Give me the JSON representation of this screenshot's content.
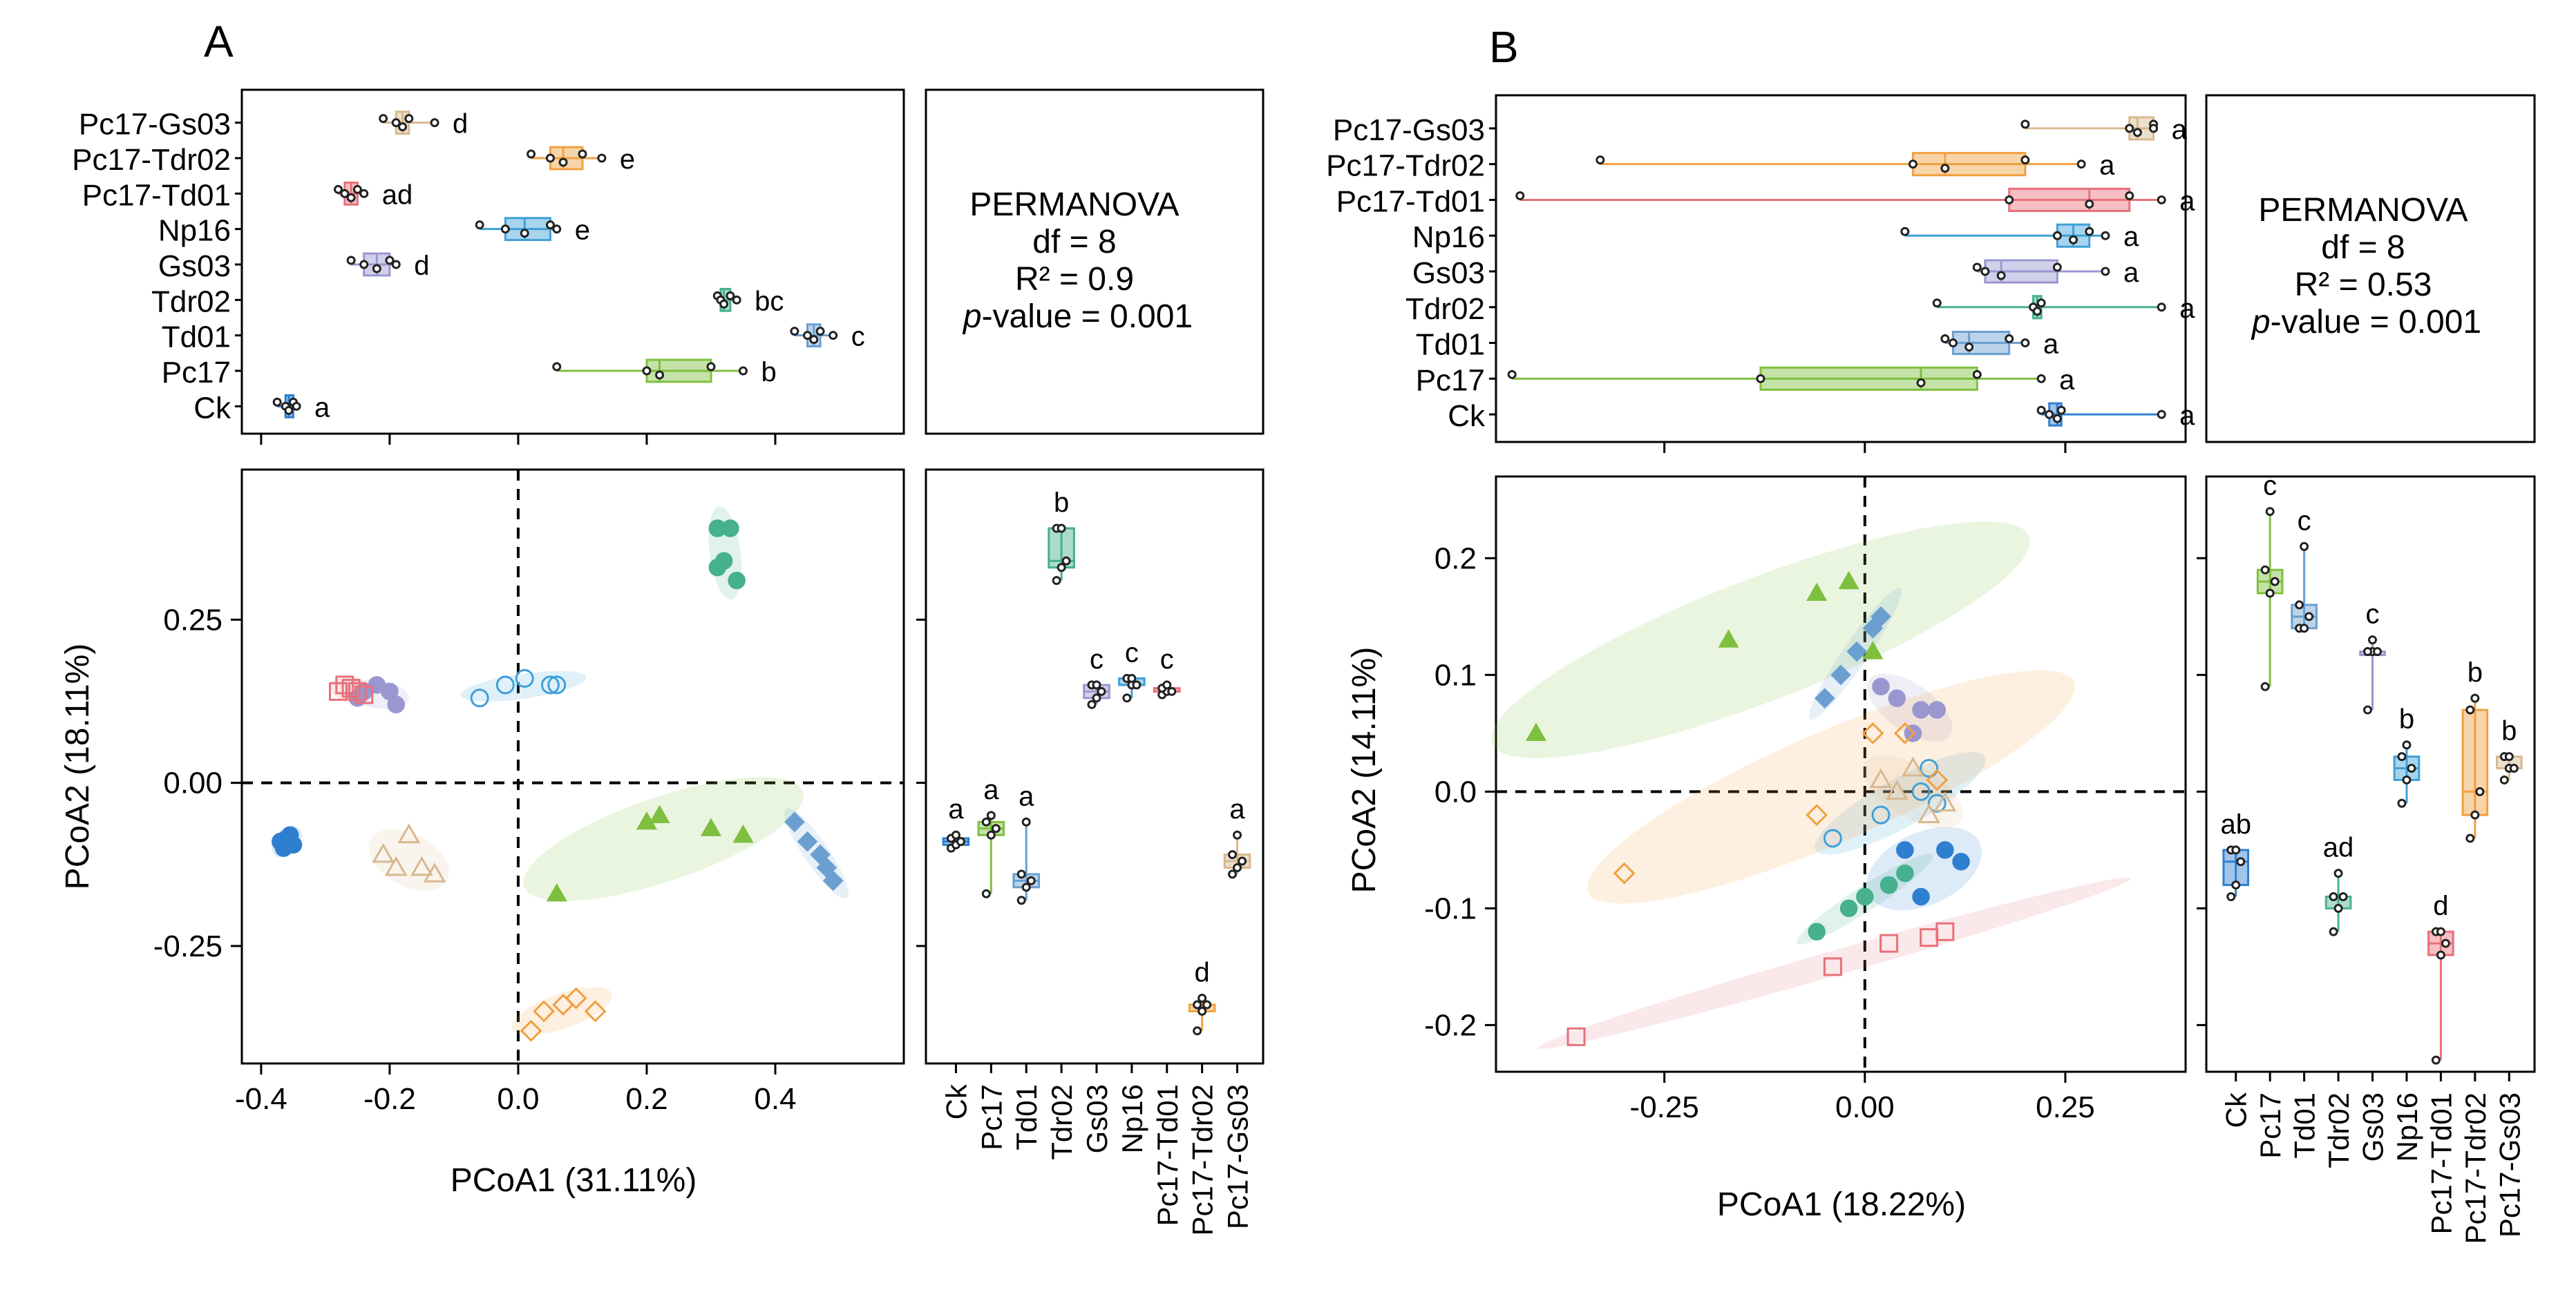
{
  "colors": {
    "Ck": "#2e7fd0",
    "Pc17": "#7fbf3f",
    "Td01": "#6a9fd0",
    "Tdr02": "#46b08f",
    "Gs03": "#9a96d0",
    "Np16": "#3fa0d8",
    "Pc17-Td01": "#e8707a",
    "Pc17-Tdr02": "#f0a040",
    "Pc17-Gs03": "#d8b890"
  },
  "chart_data": [
    {
      "panel": "A",
      "type": "scatter",
      "panel_label": "A",
      "xlabel": "PCoA1 (31.11%)",
      "ylabel": "PCoA2 (18.11%)",
      "xlim": [
        -0.43,
        0.6
      ],
      "ylim": [
        -0.43,
        0.48
      ],
      "x_ticks": [
        -0.4,
        -0.2,
        0.0,
        0.2,
        0.4
      ],
      "x_tick_labels": [
        "-0.4",
        "-0.2",
        "0.0",
        "0.2",
        "0.4"
      ],
      "y_ticks": [
        -0.25,
        0.0,
        0.25
      ],
      "y_tick_labels": [
        "-0.25",
        "0.00",
        "0.25"
      ],
      "side_ylim": [
        -0.43,
        0.48
      ],
      "groups": [
        "Ck",
        "Pc17",
        "Td01",
        "Tdr02",
        "Gs03",
        "Np16",
        "Pc17-Td01",
        "Pc17-Tdr02",
        "Pc17-Gs03"
      ],
      "top_groups_order": [
        "Pc17-Gs03",
        "Pc17-Tdr02",
        "Pc17-Td01",
        "Np16",
        "Gs03",
        "Tdr02",
        "Td01",
        "Pc17",
        "Ck"
      ],
      "series": [
        {
          "name": "Ck",
          "marker": "circle-filled",
          "points": [
            [
              -0.37,
              -0.09
            ],
            [
              -0.36,
              -0.085
            ],
            [
              -0.365,
              -0.1
            ],
            [
              -0.35,
              -0.095
            ],
            [
              -0.355,
              -0.08
            ]
          ],
          "box_x": [
            -0.375,
            -0.362,
            -0.357,
            -0.35,
            -0.345
          ],
          "box_y": [
            -0.1,
            -0.095,
            -0.09,
            -0.085,
            -0.08
          ],
          "letter_top": "a",
          "letter_side": "a"
        },
        {
          "name": "Pc17",
          "marker": "triangle-filled",
          "points": [
            [
              0.2,
              -0.06
            ],
            [
              0.22,
              -0.05
            ],
            [
              0.3,
              -0.07
            ],
            [
              0.35,
              -0.08
            ],
            [
              0.06,
              -0.17
            ]
          ],
          "box_x": [
            0.06,
            0.2,
            0.22,
            0.3,
            0.35
          ],
          "box_y": [
            -0.17,
            -0.08,
            -0.07,
            -0.06,
            -0.05
          ],
          "letter_top": "b",
          "letter_side": "a"
        },
        {
          "name": "Td01",
          "marker": "diamond-filled",
          "points": [
            [
              0.43,
              -0.06
            ],
            [
              0.45,
              -0.09
            ],
            [
              0.47,
              -0.11
            ],
            [
              0.48,
              -0.13
            ],
            [
              0.49,
              -0.15
            ]
          ],
          "box_x": [
            0.43,
            0.45,
            0.46,
            0.47,
            0.49
          ],
          "box_y": [
            -0.18,
            -0.16,
            -0.15,
            -0.14,
            -0.06
          ],
          "letter_top": "c",
          "letter_side": "a"
        },
        {
          "name": "Tdr02",
          "marker": "circle-filled",
          "points": [
            [
              0.31,
              0.39
            ],
            [
              0.33,
              0.39
            ],
            [
              0.32,
              0.34
            ],
            [
              0.34,
              0.31
            ],
            [
              0.31,
              0.33
            ]
          ],
          "box_x": [
            0.31,
            0.315,
            0.32,
            0.33,
            0.34
          ],
          "box_y": [
            0.31,
            0.33,
            0.34,
            0.39,
            0.39
          ],
          "letter_top": "bc",
          "letter_side": "b"
        },
        {
          "name": "Gs03",
          "marker": "circle-filled",
          "points": [
            [
              -0.24,
              0.14
            ],
            [
              -0.22,
              0.15
            ],
            [
              -0.2,
              0.14
            ],
            [
              -0.19,
              0.12
            ],
            [
              -0.25,
              0.13
            ]
          ],
          "box_x": [
            -0.26,
            -0.24,
            -0.22,
            -0.2,
            -0.19
          ],
          "box_y": [
            0.12,
            0.13,
            0.14,
            0.15,
            0.15
          ],
          "letter_top": "d",
          "letter_side": "c"
        },
        {
          "name": "Np16",
          "marker": "circle-open",
          "points": [
            [
              -0.06,
              0.13
            ],
            [
              -0.02,
              0.15
            ],
            [
              0.01,
              0.16
            ],
            [
              0.05,
              0.15
            ],
            [
              0.06,
              0.15
            ]
          ],
          "box_x": [
            -0.06,
            -0.02,
            0.01,
            0.05,
            0.06
          ],
          "box_y": [
            0.13,
            0.15,
            0.15,
            0.16,
            0.16
          ],
          "letter_top": "e",
          "letter_side": "c"
        },
        {
          "name": "Pc17-Td01",
          "marker": "square-open",
          "points": [
            [
              -0.28,
              0.14
            ],
            [
              -0.27,
              0.15
            ],
            [
              -0.26,
              0.145
            ],
            [
              -0.25,
              0.14
            ],
            [
              -0.24,
              0.135
            ]
          ],
          "box_x": [
            -0.28,
            -0.27,
            -0.26,
            -0.25,
            -0.24
          ],
          "box_y": [
            0.135,
            0.14,
            0.14,
            0.145,
            0.15
          ],
          "letter_top": "ad",
          "letter_side": "c"
        },
        {
          "name": "Pc17-Tdr02",
          "marker": "diamond-open",
          "points": [
            [
              0.02,
              -0.38
            ],
            [
              0.04,
              -0.35
            ],
            [
              0.07,
              -0.34
            ],
            [
              0.09,
              -0.33
            ],
            [
              0.12,
              -0.35
            ]
          ],
          "box_x": [
            0.02,
            0.05,
            0.07,
            0.1,
            0.13
          ],
          "box_y": [
            -0.38,
            -0.35,
            -0.34,
            -0.34,
            -0.33
          ],
          "letter_top": "e",
          "letter_side": "d"
        },
        {
          "name": "Pc17-Gs03",
          "marker": "triangle-open",
          "points": [
            [
              -0.21,
              -0.11
            ],
            [
              -0.19,
              -0.13
            ],
            [
              -0.17,
              -0.08
            ],
            [
              -0.15,
              -0.13
            ],
            [
              -0.13,
              -0.14
            ]
          ],
          "box_x": [
            -0.21,
            -0.19,
            -0.18,
            -0.17,
            -0.13
          ],
          "box_y": [
            -0.14,
            -0.13,
            -0.12,
            -0.11,
            -0.08
          ],
          "letter_top": "d",
          "letter_side": "a"
        }
      ],
      "permanova": {
        "title": "PERMANOVA",
        "df": "df = 8",
        "r2": "R²  = 0.9",
        "p_label": "p",
        "p_rest": "-value = 0.001"
      }
    },
    {
      "panel": "B",
      "type": "scatter",
      "panel_label": "B",
      "xlabel": "PCoA1 (18.22%)",
      "ylabel": "PCoA2 (14.11%)",
      "xlim": [
        -0.46,
        0.4
      ],
      "ylim": [
        -0.24,
        0.27
      ],
      "x_ticks": [
        -0.25,
        0.0,
        0.25
      ],
      "x_tick_labels": [
        "-0.25",
        "0.00",
        "0.25"
      ],
      "y_ticks": [
        -0.2,
        -0.1,
        0.0,
        0.1,
        0.2
      ],
      "y_tick_labels": [
        "-0.2",
        "-0.1",
        "0.0",
        "0.1",
        "0.2"
      ],
      "side_ylim": [
        -0.24,
        0.27
      ],
      "groups": [
        "Ck",
        "Pc17",
        "Td01",
        "Tdr02",
        "Gs03",
        "Np16",
        "Pc17-Td01",
        "Pc17-Tdr02",
        "Pc17-Gs03"
      ],
      "top_groups_order": [
        "Pc17-Gs03",
        "Pc17-Tdr02",
        "Pc17-Td01",
        "Np16",
        "Gs03",
        "Tdr02",
        "Td01",
        "Pc17",
        "Ck"
      ],
      "series": [
        {
          "name": "Ck",
          "marker": "circle-filled",
          "points": [
            [
              0.03,
              -0.08
            ],
            [
              0.05,
              -0.05
            ],
            [
              0.07,
              -0.09
            ],
            [
              0.1,
              -0.05
            ],
            [
              0.12,
              -0.06
            ]
          ],
          "box_x": [
            0.22,
            0.23,
            0.24,
            0.245,
            0.37
          ],
          "box_y": [
            -0.09,
            -0.08,
            -0.06,
            -0.05,
            -0.05
          ],
          "letter_top": "a",
          "letter_side": "ab"
        },
        {
          "name": "Pc17",
          "marker": "triangle-filled",
          "points": [
            [
              -0.41,
              0.05
            ],
            [
              -0.17,
              0.13
            ],
            [
              -0.06,
              0.17
            ],
            [
              -0.02,
              0.18
            ],
            [
              0.01,
              0.12
            ]
          ],
          "box_x": [
            -0.44,
            -0.13,
            0.07,
            0.14,
            0.22
          ],
          "box_y": [
            0.09,
            0.17,
            0.18,
            0.19,
            0.24
          ],
          "letter_top": "a",
          "letter_side": "c"
        },
        {
          "name": "Td01",
          "marker": "diamond-filled",
          "points": [
            [
              -0.05,
              0.08
            ],
            [
              -0.03,
              0.1
            ],
            [
              -0.01,
              0.12
            ],
            [
              0.01,
              0.14
            ],
            [
              0.02,
              0.15
            ]
          ],
          "box_x": [
            0.1,
            0.11,
            0.13,
            0.18,
            0.2
          ],
          "box_y": [
            0.14,
            0.14,
            0.15,
            0.16,
            0.21
          ],
          "letter_top": "a",
          "letter_side": "c"
        },
        {
          "name": "Tdr02",
          "marker": "circle-filled",
          "points": [
            [
              -0.06,
              -0.12
            ],
            [
              -0.02,
              -0.1
            ],
            [
              0.0,
              -0.09
            ],
            [
              0.03,
              -0.08
            ],
            [
              0.05,
              -0.07
            ]
          ],
          "box_x": [
            0.09,
            0.21,
            0.215,
            0.22,
            0.37
          ],
          "box_y": [
            -0.12,
            -0.1,
            -0.09,
            -0.09,
            -0.07
          ],
          "letter_top": "a",
          "letter_side": "ad"
        },
        {
          "name": "Gs03",
          "marker": "circle-filled",
          "points": [
            [
              0.02,
              0.09
            ],
            [
              0.04,
              0.08
            ],
            [
              0.07,
              0.07
            ],
            [
              0.09,
              0.07
            ],
            [
              0.06,
              0.05
            ]
          ],
          "box_x": [
            0.14,
            0.15,
            0.17,
            0.24,
            0.3
          ],
          "box_y": [
            0.07,
            0.12,
            0.12,
            0.12,
            0.13
          ],
          "letter_top": "a",
          "letter_side": "c"
        },
        {
          "name": "Np16",
          "marker": "circle-open",
          "points": [
            [
              -0.04,
              -0.04
            ],
            [
              0.02,
              -0.02
            ],
            [
              0.07,
              0.0
            ],
            [
              0.08,
              0.02
            ],
            [
              0.09,
              -0.01
            ]
          ],
          "box_x": [
            0.05,
            0.24,
            0.26,
            0.28,
            0.3
          ],
          "box_y": [
            -0.01,
            0.01,
            0.02,
            0.03,
            0.04
          ],
          "letter_top": "a",
          "letter_side": "b"
        },
        {
          "name": "Pc17-Td01",
          "marker": "square-open",
          "points": [
            [
              -0.36,
              -0.21
            ],
            [
              -0.04,
              -0.15
            ],
            [
              0.03,
              -0.13
            ],
            [
              0.08,
              -0.125
            ],
            [
              0.1,
              -0.12
            ]
          ],
          "box_x": [
            -0.43,
            0.18,
            0.28,
            0.33,
            0.37
          ],
          "box_y": [
            -0.23,
            -0.14,
            -0.13,
            -0.12,
            -0.12
          ],
          "letter_top": "a",
          "letter_side": "d"
        },
        {
          "name": "Pc17-Tdr02",
          "marker": "diamond-open",
          "points": [
            [
              -0.3,
              -0.07
            ],
            [
              -0.06,
              -0.02
            ],
            [
              0.01,
              0.05
            ],
            [
              0.05,
              0.05
            ],
            [
              0.09,
              0.01
            ]
          ],
          "box_x": [
            -0.33,
            0.06,
            0.1,
            0.2,
            0.27
          ],
          "box_y": [
            -0.04,
            -0.02,
            0.0,
            0.07,
            0.08
          ],
          "letter_top": "a",
          "letter_side": "b"
        },
        {
          "name": "Pc17-Gs03",
          "marker": "triangle-open",
          "points": [
            [
              0.02,
              0.01
            ],
            [
              0.04,
              0.0
            ],
            [
              0.06,
              0.02
            ],
            [
              0.08,
              -0.02
            ],
            [
              0.1,
              -0.01
            ]
          ],
          "box_x": [
            0.2,
            0.33,
            0.34,
            0.36,
            0.36
          ],
          "box_y": [
            0.01,
            0.02,
            0.02,
            0.03,
            0.03
          ],
          "letter_top": "a",
          "letter_side": "b"
        }
      ],
      "permanova": {
        "title": "PERMANOVA",
        "df": "df = 8",
        "r2": "R²  = 0.53",
        "p_label": "p",
        "p_rest": "-value = 0.001"
      }
    }
  ]
}
